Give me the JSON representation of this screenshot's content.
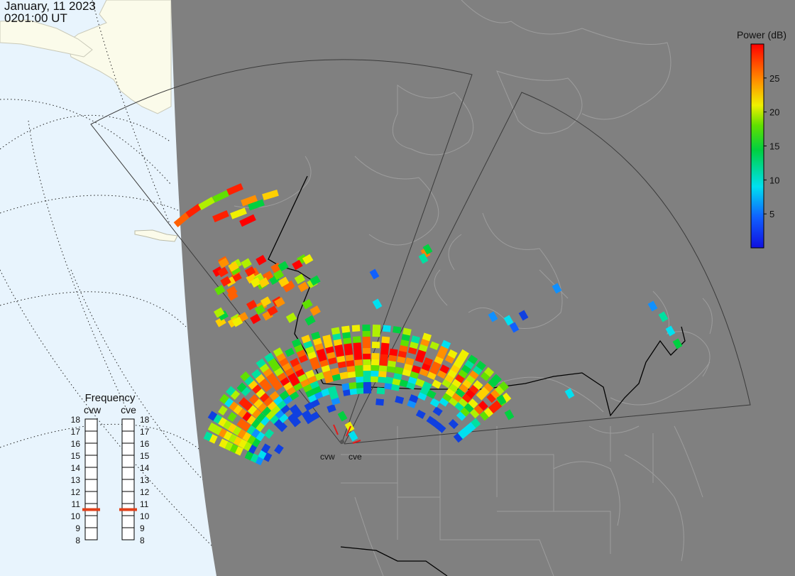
{
  "header": {
    "date": "January, 11 2023",
    "time": "0201:00 UT"
  },
  "colors": {
    "ocean": "#e8f4fd",
    "land_day": "#fbfbea",
    "night": "#808080",
    "coast_on_night": "#9a9a9a",
    "fov_outline": "#3a3a3a",
    "border": "#000000",
    "freq_marker": "#e0401a"
  },
  "colorbar": {
    "title": "Power (dB)",
    "ticks": [
      "25",
      "20",
      "15",
      "10",
      "5"
    ],
    "tick_values": [
      25,
      20,
      15,
      10,
      5
    ],
    "range": [
      0,
      30
    ]
  },
  "frequency_panel": {
    "title": "Frequency",
    "left_label": "cvw",
    "right_label": "cve",
    "ticks": [
      "18",
      "17",
      "16",
      "15",
      "14",
      "13",
      "12",
      "11",
      "10",
      "9",
      "8"
    ],
    "cvw_mhz": 10.5,
    "cve_mhz": 10.5
  },
  "radars": [
    {
      "name": "cvw"
    },
    {
      "name": "cve"
    }
  ]
}
